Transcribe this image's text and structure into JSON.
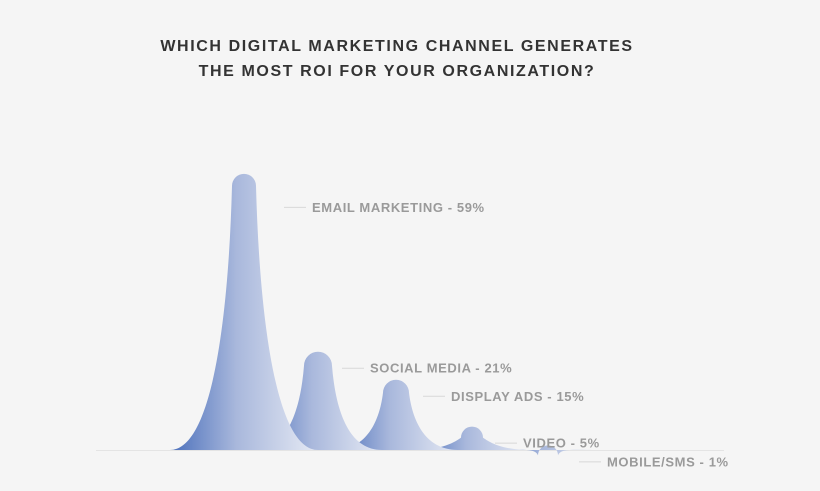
{
  "title_lines": [
    "WHICH DIGITAL MARKETING CHANNEL GENERATES",
    "THE MOST ROI FOR YOUR ORGANIZATION?"
  ],
  "colors": {
    "background": "#f5f5f5",
    "peak_dark": "#4a6fbb",
    "peak_light": "#e6eaf4",
    "label": "#9a9a9a",
    "title": "#333333"
  },
  "chart_data": {
    "type": "area",
    "title": "WHICH DIGITAL MARKETING CHANNEL GENERATES THE MOST ROI FOR YOUR ORGANIZATION?",
    "categories": [
      "EMAIL MARKETING",
      "SOCIAL MEDIA",
      "DISPLAY ADS",
      "VIDEO",
      "MOBILE/SMS"
    ],
    "values": [
      59,
      21,
      15,
      5,
      1
    ],
    "unit": "%",
    "labels": [
      "EMAIL MARKETING - 59%",
      "SOCIAL MEDIA - 21%",
      "DISPLAY ADS - 15%",
      "VIDEO - 5%",
      "MOBILE/SMS - 1%"
    ],
    "xlabel": "",
    "ylabel": "",
    "grid": false,
    "legend": "none"
  }
}
